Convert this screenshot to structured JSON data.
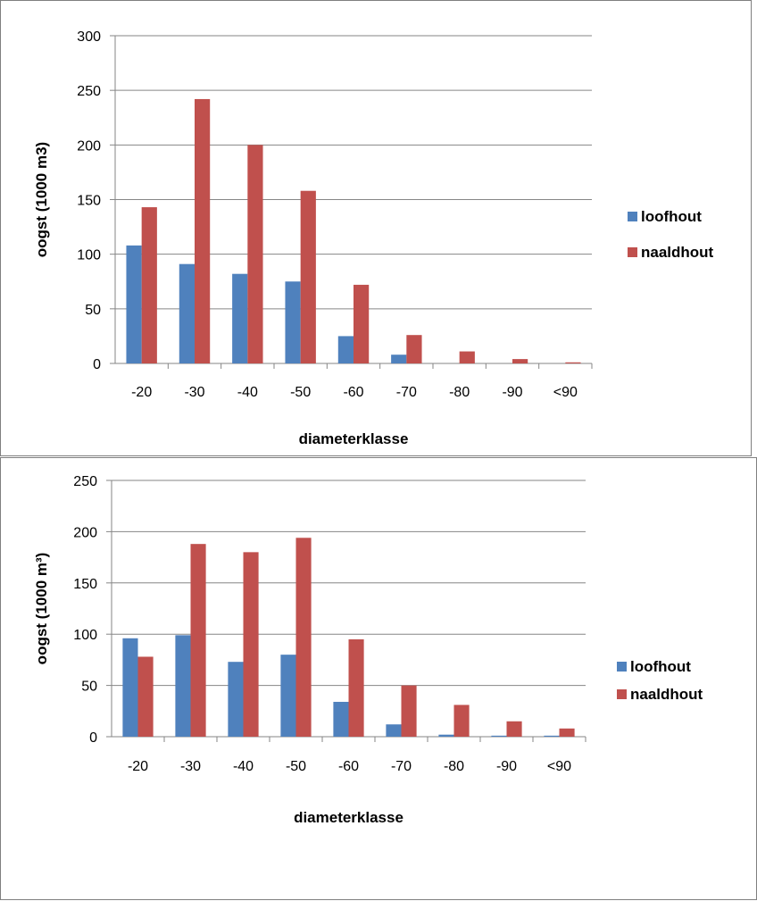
{
  "chart_data": [
    {
      "type": "bar",
      "categories": [
        "-20",
        "-30",
        "-40",
        "-50",
        "-60",
        "-70",
        "-80",
        "-90",
        "<90"
      ],
      "series": [
        {
          "name": "loofhout",
          "values": [
            108,
            91,
            82,
            75,
            25,
            8,
            0,
            0,
            0
          ]
        },
        {
          "name": "naaldhout",
          "values": [
            143,
            242,
            200,
            158,
            72,
            26,
            11,
            4,
            1
          ]
        }
      ],
      "xlabel": "diameterklasse",
      "ylabel": "oogst (1000 m3)",
      "ylim": [
        0,
        300
      ],
      "yticks": [
        0,
        50,
        100,
        150,
        200,
        250,
        300
      ],
      "grid": true,
      "legend": "right",
      "colors": {
        "loofhout": "#4f81bd",
        "naaldhout": "#c0504d",
        "gridline": "#868686"
      }
    },
    {
      "type": "bar",
      "categories": [
        "-20",
        "-30",
        "-40",
        "-50",
        "-60",
        "-70",
        "-80",
        "-90",
        "<90"
      ],
      "series": [
        {
          "name": "loofhout",
          "values": [
            96,
            99,
            73,
            80,
            34,
            12,
            2,
            1,
            1
          ]
        },
        {
          "name": "naaldhout",
          "values": [
            78,
            188,
            180,
            194,
            95,
            50,
            31,
            15,
            8
          ]
        }
      ],
      "xlabel": "diameterklasse",
      "ylabel": "oogst (1000 m³)",
      "ylim": [
        0,
        250
      ],
      "yticks": [
        0,
        50,
        100,
        150,
        200,
        250
      ],
      "grid": true,
      "legend": "right",
      "colors": {
        "loofhout": "#4f81bd",
        "naaldhout": "#c0504d",
        "gridline": "#868686"
      }
    }
  ]
}
